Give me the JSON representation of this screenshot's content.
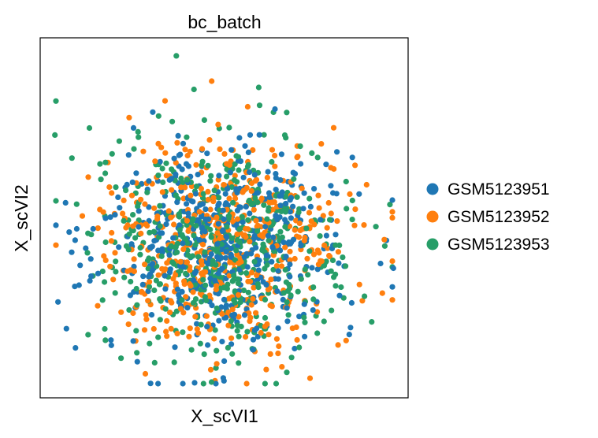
{
  "chart_data": {
    "type": "scatter",
    "title": "bc_batch",
    "xlabel": "X_scVI1",
    "ylabel": "X_scVI2",
    "xticks": [],
    "yticks": [],
    "grid": false,
    "legend_position": "right-outside",
    "point_count_per_series_approx": 520,
    "series": [
      {
        "name": "GSM5123951",
        "color": "#1f77b4"
      },
      {
        "name": "GSM5123952",
        "color": "#ff7f0e"
      },
      {
        "name": "GSM5123953",
        "color": "#279e68"
      }
    ],
    "outliers": [
      {
        "series": "GSM5123953",
        "x": 0.37,
        "y": 0.95
      },
      {
        "series": "GSM5123953",
        "x": 0.04,
        "y": 0.73
      },
      {
        "series": "GSM5123951",
        "x": 0.96,
        "y": 0.36
      },
      {
        "series": "GSM5123951",
        "x": 0.3,
        "y": 0.04
      },
      {
        "series": "GSM5123952",
        "x": 0.88,
        "y": 0.48
      }
    ]
  }
}
